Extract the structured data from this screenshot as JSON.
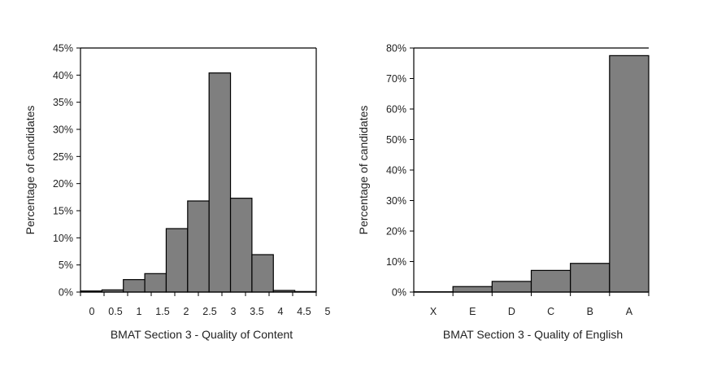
{
  "chart_data": [
    {
      "type": "bar",
      "xlabel": "BMAT Section 3 - Quality of Content",
      "ylabel": "Percentage of candidates",
      "ylim": [
        0,
        45
      ],
      "yticks": [
        0,
        5,
        10,
        15,
        20,
        25,
        30,
        35,
        40,
        45
      ],
      "ytick_labels": [
        "0%",
        "5%",
        "10%",
        "15%",
        "20%",
        "25%",
        "30%",
        "35%",
        "40%",
        "45%"
      ],
      "categories": [
        "0",
        "0.5",
        "1",
        "1.5",
        "2",
        "2.5",
        "3",
        "3.5",
        "4",
        "4.5",
        "5"
      ],
      "values": [
        0.2,
        0.4,
        2.3,
        3.4,
        11.7,
        16.8,
        40.4,
        17.3,
        6.9,
        0.3,
        0.1
      ],
      "grid": false,
      "bar_color": "#7f7f7f",
      "edge_color": "#000000"
    },
    {
      "type": "bar",
      "xlabel": "BMAT Section 3 - Quality of English",
      "ylabel": "Percentage of candidates",
      "ylim": [
        0,
        80
      ],
      "yticks": [
        0,
        10,
        20,
        30,
        40,
        50,
        60,
        70,
        80
      ],
      "ytick_labels": [
        "0%",
        "10%",
        "20%",
        "30%",
        "40%",
        "50%",
        "60%",
        "70%",
        "80%"
      ],
      "categories": [
        "X",
        "E",
        "D",
        "C",
        "B",
        "A"
      ],
      "values": [
        0.1,
        1.8,
        3.5,
        7.1,
        9.4,
        77.5
      ],
      "grid": false,
      "bar_color": "#7f7f7f",
      "edge_color": "#000000"
    }
  ]
}
